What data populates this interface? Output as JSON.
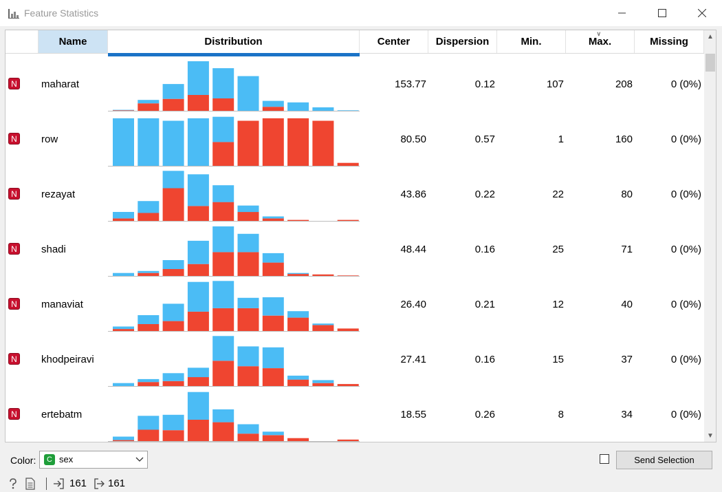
{
  "window": {
    "title": "Feature Statistics"
  },
  "table": {
    "columns": [
      "Name",
      "Distribution",
      "Center",
      "Dispersion",
      "Min.",
      "Max.",
      "Missing"
    ],
    "rows": [
      {
        "type": "N",
        "name": "maharat",
        "center": "153.77",
        "dispersion": "0.12",
        "min": "107",
        "max": "208",
        "missing": "0 (0%)",
        "dist": [
          [
            0.01,
            0.01
          ],
          [
            0.15,
            0.07
          ],
          [
            0.24,
            0.3
          ],
          [
            0.32,
            0.68
          ],
          [
            0.25,
            0.61
          ],
          [
            0.0,
            0.7
          ],
          [
            0.08,
            0.12
          ],
          [
            0.0,
            0.17
          ],
          [
            0.0,
            0.07
          ],
          [
            0.0,
            0.01
          ]
        ]
      },
      {
        "type": "N",
        "name": "row",
        "center": "80.50",
        "dispersion": "0.57",
        "min": "1",
        "max": "160",
        "missing": "0 (0%)",
        "dist": [
          [
            0.0,
            0.96
          ],
          [
            0.0,
            0.96
          ],
          [
            0.0,
            0.91
          ],
          [
            0.0,
            0.96
          ],
          [
            0.48,
            0.51
          ],
          [
            0.91,
            0.0
          ],
          [
            0.96,
            0.0
          ],
          [
            0.96,
            0.0
          ],
          [
            0.91,
            0.0
          ],
          [
            0.06,
            0.0
          ]
        ]
      },
      {
        "type": "N",
        "name": "rezayat",
        "center": "43.86",
        "dispersion": "0.22",
        "min": "22",
        "max": "80",
        "missing": "0 (0%)",
        "dist": [
          [
            0.05,
            0.13
          ],
          [
            0.16,
            0.24
          ],
          [
            0.66,
            0.35
          ],
          [
            0.3,
            0.64
          ],
          [
            0.38,
            0.34
          ],
          [
            0.18,
            0.13
          ],
          [
            0.05,
            0.04
          ],
          [
            0.02,
            0.0
          ],
          [
            0.0,
            0.0
          ],
          [
            0.02,
            0.0
          ]
        ]
      },
      {
        "type": "N",
        "name": "shadi",
        "center": "48.44",
        "dispersion": "0.16",
        "min": "25",
        "max": "71",
        "missing": "0 (0%)",
        "dist": [
          [
            0.0,
            0.06
          ],
          [
            0.06,
            0.04
          ],
          [
            0.14,
            0.18
          ],
          [
            0.24,
            0.47
          ],
          [
            0.48,
            0.52
          ],
          [
            0.48,
            0.37
          ],
          [
            0.27,
            0.19
          ],
          [
            0.04,
            0.02
          ],
          [
            0.03,
            0.0
          ],
          [
            0.01,
            0.0
          ]
        ]
      },
      {
        "type": "N",
        "name": "manaviat",
        "center": "26.40",
        "dispersion": "0.21",
        "min": "12",
        "max": "40",
        "missing": "0 (0%)",
        "dist": [
          [
            0.04,
            0.05
          ],
          [
            0.14,
            0.18
          ],
          [
            0.2,
            0.35
          ],
          [
            0.39,
            0.6
          ],
          [
            0.46,
            0.55
          ],
          [
            0.46,
            0.21
          ],
          [
            0.31,
            0.37
          ],
          [
            0.27,
            0.13
          ],
          [
            0.12,
            0.03
          ],
          [
            0.05,
            0.0
          ]
        ]
      },
      {
        "type": "N",
        "name": "khodpeiravi",
        "center": "27.41",
        "dispersion": "0.16",
        "min": "15",
        "max": "37",
        "missing": "0 (0%)",
        "dist": [
          [
            0.0,
            0.06
          ],
          [
            0.08,
            0.06
          ],
          [
            0.1,
            0.16
          ],
          [
            0.18,
            0.19
          ],
          [
            0.51,
            0.5
          ],
          [
            0.4,
            0.4
          ],
          [
            0.36,
            0.42
          ],
          [
            0.13,
            0.08
          ],
          [
            0.06,
            0.06
          ],
          [
            0.04,
            0.0
          ]
        ]
      },
      {
        "type": "N",
        "name": "ertebatm",
        "center": "18.55",
        "dispersion": "0.26",
        "min": "8",
        "max": "34",
        "missing": "0 (0%)",
        "dist": [
          [
            0.02,
            0.07
          ],
          [
            0.23,
            0.28
          ],
          [
            0.22,
            0.31
          ],
          [
            0.43,
            0.56
          ],
          [
            0.38,
            0.26
          ],
          [
            0.15,
            0.19
          ],
          [
            0.12,
            0.07
          ],
          [
            0.06,
            0.0
          ],
          [
            0.0,
            0.0
          ],
          [
            0.03,
            0.0
          ]
        ]
      }
    ]
  },
  "controls": {
    "color_label": "Color:",
    "color_type": "C",
    "color_value": "sex",
    "send_label": "Send Selection"
  },
  "status": {
    "input_count": "161",
    "output_count": "161"
  },
  "colors": {
    "series_a": "#ef4530",
    "series_b": "#4bbcf5",
    "badge_numeric": "#c8102e",
    "badge_categorical": "#1f9e3a"
  }
}
